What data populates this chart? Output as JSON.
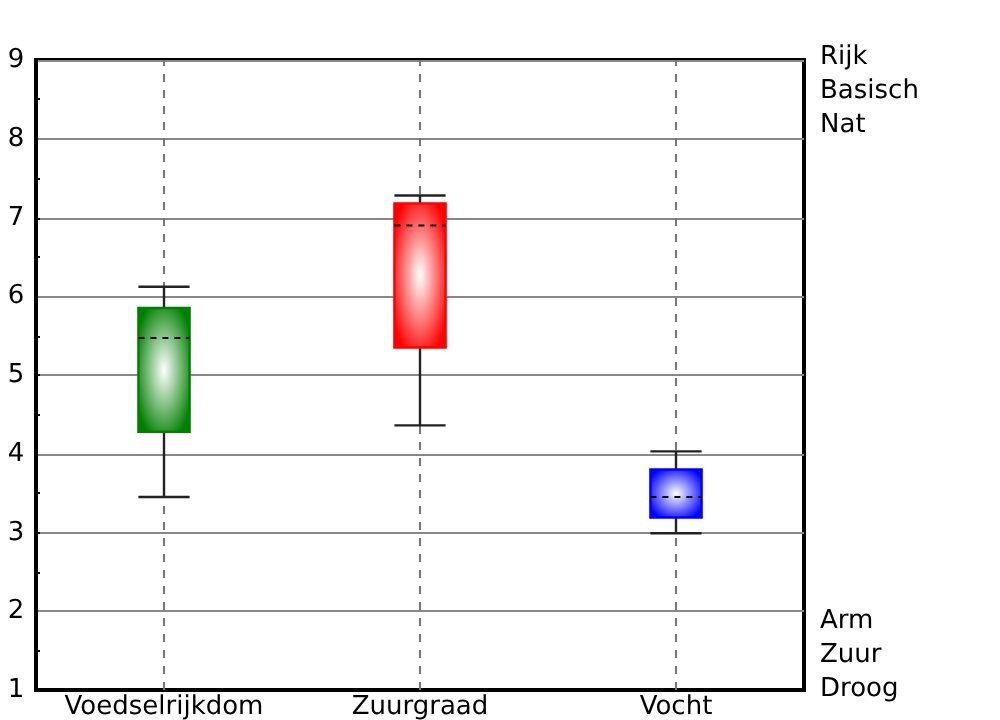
{
  "chart_data": {
    "type": "box",
    "categories": [
      "Voedselrijkdom",
      "Zuurgraad",
      "Vocht"
    ],
    "boxes": [
      {
        "low": 3.45,
        "q1": 4.28,
        "median": 5.47,
        "q3": 5.85,
        "high": 6.12
      },
      {
        "low": 4.36,
        "q1": 5.35,
        "median": 6.9,
        "q3": 7.18,
        "high": 7.28
      },
      {
        "low": 2.99,
        "q1": 3.19,
        "median": 3.45,
        "q3": 3.8,
        "high": 4.03
      }
    ],
    "colors": [
      "#008000",
      "#ff0000",
      "#0000ff"
    ],
    "ylim": [
      1,
      9
    ],
    "yticks": [
      1,
      2,
      3,
      4,
      5,
      6,
      7,
      8,
      9
    ],
    "grid": true,
    "annotations": [
      "Rijk",
      "Basisch",
      "Nat",
      "Arm",
      "Zuur",
      "Droog"
    ]
  }
}
